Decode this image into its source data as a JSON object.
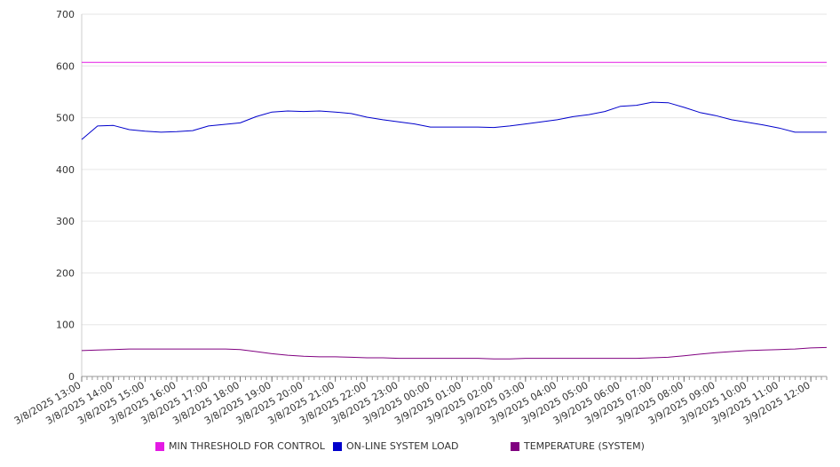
{
  "chart_data": {
    "type": "line",
    "title": "",
    "xlabel": "",
    "ylabel": "",
    "ylim": [
      0,
      700
    ],
    "yticks": [
      0,
      100,
      200,
      300,
      400,
      500,
      600,
      700
    ],
    "grid": true,
    "legend_position": "bottom",
    "x_start": "3/8/2025 13:00",
    "x_end": "3/9/2025 12:30",
    "x_tick_labels": [
      "3/8/2025 13:00",
      "3/8/2025 14:00",
      "3/8/2025 15:00",
      "3/8/2025 16:00",
      "3/8/2025 17:00",
      "3/8/2025 18:00",
      "3/8/2025 19:00",
      "3/8/2025 20:00",
      "3/8/2025 21:00",
      "3/8/2025 22:00",
      "3/8/2025 23:00",
      "3/9/2025 00:00",
      "3/9/2025 01:00",
      "3/9/2025 02:00",
      "3/9/2025 03:00",
      "3/9/2025 04:00",
      "3/9/2025 05:00",
      "3/9/2025 06:00",
      "3/9/2025 07:00",
      "3/9/2025 08:00",
      "3/9/2025 09:00",
      "3/9/2025 10:00",
      "3/9/2025 11:00",
      "3/9/2025 12:00"
    ],
    "x": [
      "3/8/2025 13:00",
      "3/8/2025 13:30",
      "3/8/2025 14:00",
      "3/8/2025 14:30",
      "3/8/2025 15:00",
      "3/8/2025 15:30",
      "3/8/2025 16:00",
      "3/8/2025 16:30",
      "3/8/2025 17:00",
      "3/8/2025 17:30",
      "3/8/2025 18:00",
      "3/8/2025 18:30",
      "3/8/2025 19:00",
      "3/8/2025 19:30",
      "3/8/2025 20:00",
      "3/8/2025 20:30",
      "3/8/2025 21:00",
      "3/8/2025 21:30",
      "3/8/2025 22:00",
      "3/8/2025 22:30",
      "3/8/2025 23:00",
      "3/8/2025 23:30",
      "3/9/2025 00:00",
      "3/9/2025 00:30",
      "3/9/2025 01:00",
      "3/9/2025 01:30",
      "3/9/2025 02:00",
      "3/9/2025 02:30",
      "3/9/2025 03:00",
      "3/9/2025 03:30",
      "3/9/2025 04:00",
      "3/9/2025 04:30",
      "3/9/2025 05:00",
      "3/9/2025 05:30",
      "3/9/2025 06:00",
      "3/9/2025 06:30",
      "3/9/2025 07:00",
      "3/9/2025 07:30",
      "3/9/2025 08:00",
      "3/9/2025 08:30",
      "3/9/2025 09:00",
      "3/9/2025 09:30",
      "3/9/2025 10:00",
      "3/9/2025 10:30",
      "3/9/2025 11:00",
      "3/9/2025 11:30",
      "3/9/2025 12:00",
      "3/9/2025 12:30"
    ],
    "series": [
      {
        "name": "MIN THRESHOLD FOR CONTROL",
        "color": "#e41ae4",
        "values": [
          607,
          607,
          607,
          607,
          607,
          607,
          607,
          607,
          607,
          607,
          607,
          607,
          607,
          607,
          607,
          607,
          607,
          607,
          607,
          607,
          607,
          607,
          607,
          607,
          607,
          607,
          607,
          607,
          607,
          607,
          607,
          607,
          607,
          607,
          607,
          607,
          607,
          607,
          607,
          607,
          607,
          607,
          607,
          607,
          607,
          607,
          607,
          607
        ]
      },
      {
        "name": "ON-LINE SYSTEM LOAD",
        "color": "#0000cc",
        "values": [
          458,
          484,
          485,
          477,
          474,
          472,
          473,
          475,
          484,
          487,
          490,
          502,
          511,
          513,
          512,
          513,
          511,
          508,
          501,
          496,
          492,
          488,
          482,
          482,
          482,
          482,
          481,
          484,
          488,
          492,
          496,
          502,
          506,
          512,
          522,
          524,
          530,
          529,
          520,
          510,
          504,
          496,
          491,
          486,
          480,
          472,
          472,
          472
        ]
      },
      {
        "name": "TEMPERATURE (SYSTEM)",
        "color": "#800080",
        "values": [
          50,
          51,
          52,
          53,
          53,
          53,
          53,
          53,
          53,
          53,
          52,
          48,
          44,
          41,
          39,
          38,
          38,
          37,
          36,
          36,
          35,
          35,
          35,
          35,
          35,
          35,
          34,
          34,
          35,
          35,
          35,
          35,
          35,
          35,
          35,
          35,
          36,
          37,
          40,
          43,
          46,
          48,
          50,
          51,
          52,
          53,
          55,
          56
        ]
      }
    ]
  }
}
